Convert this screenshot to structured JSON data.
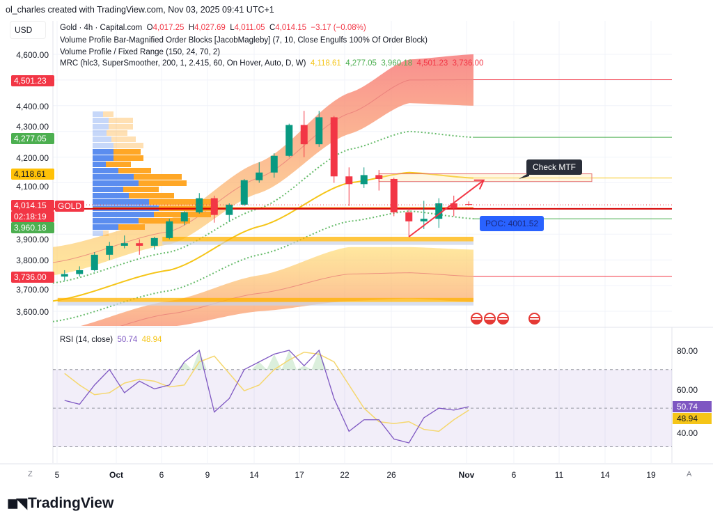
{
  "header": {
    "credit": "ol_charles created with TradingView.com, Nov 03, 2025 09:41 UTC+1",
    "currency": "USD",
    "symbol_line": {
      "name": "Gold · 4h · Capital.com",
      "o_label": "O",
      "o": "4,017.25",
      "h_label": "H",
      "h": "4,027.69",
      "l_label": "L",
      "l": "4,011.05",
      "c_label": "C",
      "c": "4,014.15",
      "change": "−3.17 (−0.08%)"
    },
    "indicator_1": "Volume Profile Bar-Magnified Order Blocks [JacobMagleby] (7, 10, Close Engulfs 100% Of Order Block)",
    "indicator_2": "Volume Profile / Fixed Range (150, 24, 70, 2)",
    "indicator_3": {
      "name": "MRC (hlc3, SuperSmoother, 200, 1, 2.415, 60, On Hover, Auto, D, W)",
      "v1": "4,118.61",
      "v2": "4,277.05",
      "v3": "3,960.18",
      "v4": "4,501.23",
      "v5": "3,736.00"
    }
  },
  "price_axis": {
    "ticks": [
      "4,600.00",
      "4,400.00",
      "4,300.00",
      "4,200.00",
      "4,100.00",
      "3,900.00",
      "3,800.00",
      "3,700.00",
      "3,600.00"
    ],
    "badges": {
      "mrc_upper": "4,501.23",
      "mrc_upper_mid": "4,277.05",
      "mrc_mean": "4,118.61",
      "last_price": "4,014.15",
      "countdown": "02:18:19",
      "mrc_lower_mid": "3,960.18",
      "mrc_lower": "3,736.00"
    },
    "symbol_tag": "GOLD"
  },
  "annotations": {
    "check_mtf": "Check MTF",
    "poc": "POC: 4001.52"
  },
  "rsi": {
    "title": "RSI (14, close)",
    "value": "50.74",
    "ma_value": "48.94",
    "ticks": [
      "80.00",
      "60.00",
      "40.00"
    ],
    "badge_rsi": "50.74",
    "badge_ma": "48.94"
  },
  "time_axis": {
    "labels": [
      "5",
      "Oct",
      "6",
      "9",
      "14",
      "17",
      "22",
      "26",
      "Nov",
      "6",
      "11",
      "14",
      "19"
    ],
    "left_button": "Z",
    "right_button": "A"
  },
  "branding": {
    "logo_text": "TradingView"
  },
  "colors": {
    "up": "#089981",
    "down": "#f23645",
    "mean": "#f5c518",
    "mid": "#66bb6a",
    "rsi": "#7e57c2",
    "rsi_ma": "#f5d76e",
    "vp_up": "#5b8def",
    "vp_down": "#ffa726",
    "poc": "#2962ff"
  },
  "chart_data": [
    {
      "type": "candlestick",
      "title": "Gold · 4h · Capital.com",
      "ylim": [
        3560,
        4680
      ],
      "x": [
        "2025-09-25",
        "2025-09-26",
        "2025-09-29",
        "2025-09-30",
        "2025-10-01",
        "2025-10-02",
        "2025-10-03",
        "2025-10-06",
        "2025-10-07",
        "2025-10-08",
        "2025-10-09",
        "2025-10-10",
        "2025-10-13",
        "2025-10-14",
        "2025-10-15",
        "2025-10-16",
        "2025-10-17",
        "2025-10-20",
        "2025-10-21",
        "2025-10-22",
        "2025-10-23",
        "2025-10-24",
        "2025-10-27",
        "2025-10-28",
        "2025-10-29",
        "2025-10-30",
        "2025-10-31",
        "2025-11-03"
      ],
      "ohlc": [
        [
          3735,
          3760,
          3720,
          3745
        ],
        [
          3745,
          3775,
          3735,
          3760
        ],
        [
          3760,
          3830,
          3755,
          3820
        ],
        [
          3820,
          3870,
          3800,
          3855
        ],
        [
          3855,
          3895,
          3845,
          3865
        ],
        [
          3865,
          3880,
          3820,
          3855
        ],
        [
          3855,
          3890,
          3840,
          3885
        ],
        [
          3885,
          3960,
          3880,
          3950
        ],
        [
          3950,
          3990,
          3935,
          3985
        ],
        [
          3985,
          4060,
          3980,
          4040
        ],
        [
          4040,
          4050,
          3945,
          3975
        ],
        [
          3975,
          4020,
          3950,
          4015
        ],
        [
          4015,
          4115,
          4010,
          4110
        ],
        [
          4110,
          4180,
          4100,
          4140
        ],
        [
          4140,
          4215,
          4120,
          4205
        ],
        [
          4205,
          4330,
          4200,
          4325
        ],
        [
          4325,
          4380,
          4200,
          4250
        ],
        [
          4250,
          4380,
          4240,
          4355
        ],
        [
          4355,
          4360,
          4100,
          4125
        ],
        [
          4125,
          4160,
          4010,
          4095
        ],
        [
          4095,
          4160,
          4080,
          4130
        ],
        [
          4130,
          4150,
          4070,
          4115
        ],
        [
          4115,
          4120,
          3970,
          3985
        ],
        [
          3985,
          4000,
          3890,
          3950
        ],
        [
          3950,
          4030,
          3920,
          3960
        ],
        [
          3960,
          4040,
          3925,
          4020
        ],
        [
          4020,
          4050,
          3970,
          4000
        ],
        [
          4017.25,
          4027.69,
          4011.05,
          4014.15
        ]
      ],
      "mrc": {
        "x": [
          "2025-09-25",
          "2025-10-06",
          "2025-10-14",
          "2025-10-22",
          "2025-10-28",
          "2025-11-03"
        ],
        "upper_outer": [
          3850,
          3960,
          4180,
          4450,
          4580,
          4600
        ],
        "upper": [
          3790,
          3910,
          4120,
          4370,
          4500,
          4501.23
        ],
        "upper_inner": [
          3740,
          3860,
          4060,
          4290,
          4410,
          4400
        ],
        "upper_mid": [
          3710,
          3830,
          4000,
          4230,
          4300,
          4277.05
        ],
        "mean": [
          3640,
          3760,
          3930,
          4100,
          4140,
          4118.61
        ],
        "lower_mid": [
          3560,
          3680,
          3820,
          3950,
          3990,
          3960.18
        ],
        "lower_inner": [
          3520,
          3640,
          3740,
          3850,
          3850,
          3840
        ],
        "lower": [
          3470,
          3590,
          3670,
          3745,
          3750,
          3736.0
        ],
        "lower_outer": [
          3420,
          3540,
          3600,
          3640,
          3650,
          3636
        ]
      },
      "volume_profile": {
        "poc": 4001.52,
        "rows": [
          {
            "price": 4370,
            "up": 15,
            "down": 15,
            "value_area": false
          },
          {
            "price": 4360,
            "up": 23,
            "down": 35,
            "value_area": false
          },
          {
            "price": 4350,
            "up": 23,
            "down": 35,
            "value_area": false
          },
          {
            "price": 4340,
            "up": 20,
            "down": 30,
            "value_area": false
          },
          {
            "price": 4325,
            "up": 27,
            "down": 35,
            "value_area": false
          },
          {
            "price": 4300,
            "up": 30,
            "down": 43,
            "value_area": false
          },
          {
            "price": 4275,
            "up": 30,
            "down": 39,
            "value_area": true
          },
          {
            "price": 4250,
            "up": 30,
            "down": 43,
            "value_area": true
          },
          {
            "price": 4225,
            "up": 19,
            "down": 36,
            "value_area": true
          },
          {
            "price": 4200,
            "up": 37,
            "down": 47,
            "value_area": true
          },
          {
            "price": 4175,
            "up": 59,
            "down": 69,
            "value_area": true
          },
          {
            "price": 4150,
            "up": 66,
            "down": 69,
            "value_area": true
          },
          {
            "price": 4125,
            "up": 44,
            "down": 51,
            "value_area": true
          },
          {
            "price": 4100,
            "up": 52,
            "down": 65,
            "value_area": true
          },
          {
            "price": 4075,
            "up": 81,
            "down": 94,
            "value_area": true
          },
          {
            "price": 4050,
            "up": 95,
            "down": 85,
            "value_area": true
          },
          {
            "price": 4025,
            "up": 88,
            "down": 82,
            "value_area": true
          },
          {
            "price": 4000,
            "up": 66,
            "down": 74,
            "value_area": true
          },
          {
            "price": 3975,
            "up": 37,
            "down": 38,
            "value_area": true
          },
          {
            "price": 3950,
            "up": 15,
            "down": 8,
            "value_area": false
          }
        ]
      },
      "order_blocks": [
        {
          "top": 3890,
          "bottom": 3872,
          "start": "2025-10-06",
          "color": "#ffb300"
        },
        {
          "top": 3652,
          "bottom": 3636,
          "start": "2025-09-25",
          "color": "#ffb300"
        }
      ],
      "zones": [
        {
          "top": 4135,
          "bottom": 4105,
          "start": "2025-10-24",
          "label": "Check MTF"
        }
      ],
      "levels": [
        {
          "price": 4001.52,
          "label": "POC: 4001.52"
        }
      ],
      "arrow": {
        "from": [
          "2025-10-28",
          3890
        ],
        "to": [
          "2025-11-04",
          4110
        ]
      }
    },
    {
      "type": "line",
      "title": "RSI (14, close)",
      "ylim": [
        25,
        88
      ],
      "bands": [
        30,
        50,
        70
      ],
      "x": [
        "2025-09-25",
        "2025-09-26",
        "2025-09-29",
        "2025-09-30",
        "2025-10-01",
        "2025-10-02",
        "2025-10-03",
        "2025-10-06",
        "2025-10-07",
        "2025-10-08",
        "2025-10-09",
        "2025-10-10",
        "2025-10-13",
        "2025-10-14",
        "2025-10-15",
        "2025-10-16",
        "2025-10-17",
        "2025-10-20",
        "2025-10-21",
        "2025-10-22",
        "2025-10-23",
        "2025-10-24",
        "2025-10-27",
        "2025-10-28",
        "2025-10-29",
        "2025-10-30",
        "2025-10-31",
        "2025-11-03"
      ],
      "series": [
        {
          "values": [
            54,
            52,
            62,
            70,
            58,
            64,
            60,
            62,
            74,
            80,
            48,
            55,
            70,
            74,
            78,
            80,
            72,
            80,
            55,
            38,
            44,
            44,
            34,
            32,
            45,
            50,
            49,
            50.74
          ]
        },
        {
          "values": [
            68,
            62,
            57,
            58,
            63,
            65,
            64,
            61,
            62,
            74,
            77,
            68,
            59,
            62,
            70,
            75,
            79,
            78,
            74,
            62,
            50,
            43,
            42,
            43,
            39,
            38,
            44,
            48.94
          ]
        }
      ]
    }
  ]
}
